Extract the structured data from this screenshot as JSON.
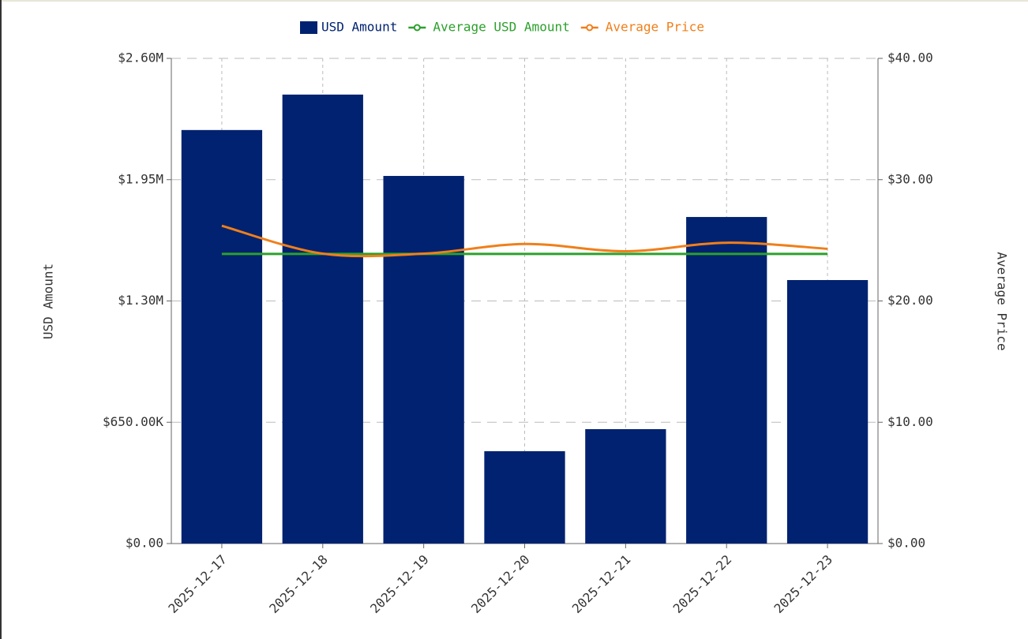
{
  "chart_data": {
    "type": "bar",
    "categories": [
      "2025-12-17",
      "2025-12-18",
      "2025-12-19",
      "2025-12-20",
      "2025-12-21",
      "2025-12-22",
      "2025-12-23"
    ],
    "series": [
      {
        "name": "USD Amount",
        "type": "bar",
        "color": "#012270",
        "values": [
          2216000,
          2406000,
          1970000,
          495000,
          613000,
          1750000,
          1412000
        ]
      },
      {
        "name": "Average USD Amount",
        "type": "line",
        "color": "#2ca02c",
        "values": [
          1552000,
          1552000,
          1552000,
          1552000,
          1552000,
          1552000,
          1552000
        ]
      },
      {
        "name": "Average Price",
        "type": "line",
        "color": "#f07f1a",
        "axis": "y2",
        "values": [
          26.2,
          23.9,
          23.9,
          24.7,
          24.1,
          24.8,
          24.3
        ]
      }
    ],
    "y_label": "USD Amount",
    "y2_label": "Average Price",
    "ylim": [
      0,
      2600000
    ],
    "yticks": [
      {
        "value": 0,
        "label": "$0.00"
      },
      {
        "value": 650000,
        "label": "$650.00K"
      },
      {
        "value": 1300000,
        "label": "$1.30M"
      },
      {
        "value": 1950000,
        "label": "$1.95M"
      },
      {
        "value": 2600000,
        "label": "$2.60M"
      }
    ],
    "y2lim": [
      0,
      40
    ],
    "y2ticks": [
      {
        "value": 0,
        "label": "$0.00"
      },
      {
        "value": 10,
        "label": "$10.00"
      },
      {
        "value": 20,
        "label": "$20.00"
      },
      {
        "value": 30,
        "label": "$30.00"
      },
      {
        "value": 40,
        "label": "$40.00"
      }
    ],
    "grid": true,
    "legend": "top"
  }
}
